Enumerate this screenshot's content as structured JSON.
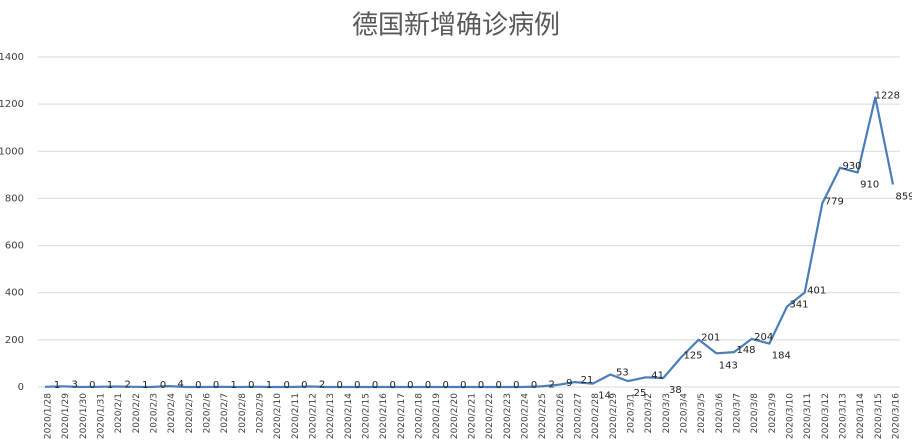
{
  "chart_data": {
    "type": "line",
    "title": "德国新增确诊病例",
    "categories": [
      "2020/1/28",
      "2020/1/29",
      "2020/1/30",
      "2020/1/31",
      "2020/2/1",
      "2020/2/2",
      "2020/2/3",
      "2020/2/4",
      "2020/2/5",
      "2020/2/6",
      "2020/2/7",
      "2020/2/8",
      "2020/2/9",
      "2020/2/10",
      "2020/2/11",
      "2020/2/12",
      "2020/2/13",
      "2020/2/14",
      "2020/2/15",
      "2020/2/16",
      "2020/2/17",
      "2020/2/18",
      "2020/2/19",
      "2020/2/20",
      "2020/2/21",
      "2020/2/22",
      "2020/2/23",
      "2020/2/24",
      "2020/2/25",
      "2020/2/26",
      "2020/2/27",
      "2020/2/28",
      "2020/2/29",
      "2020/3/1",
      "2020/3/2",
      "2020/3/3",
      "2020/3/4",
      "2020/3/5",
      "2020/3/6",
      "2020/3/7",
      "2020/3/8",
      "2020/3/9",
      "2020/3/10",
      "2020/3/11",
      "2020/3/12",
      "2020/3/13",
      "2020/3/14",
      "2020/3/15",
      "2020/3/16"
    ],
    "values": [
      1,
      3,
      0,
      1,
      2,
      1,
      0,
      4,
      0,
      0,
      1,
      0,
      1,
      0,
      0,
      2,
      0,
      0,
      0,
      0,
      0,
      0,
      0,
      0,
      0,
      0,
      0,
      0,
      2,
      9,
      21,
      14,
      53,
      25,
      41,
      38,
      125,
      201,
      143,
      148,
      204,
      184,
      341,
      401,
      779,
      930,
      910,
      1228,
      859
    ],
    "color": "#4a7ebb",
    "ylim": [
      0,
      1400
    ],
    "yticks": [
      0,
      200,
      400,
      600,
      800,
      1000,
      1200,
      1400
    ],
    "grid": true
  }
}
